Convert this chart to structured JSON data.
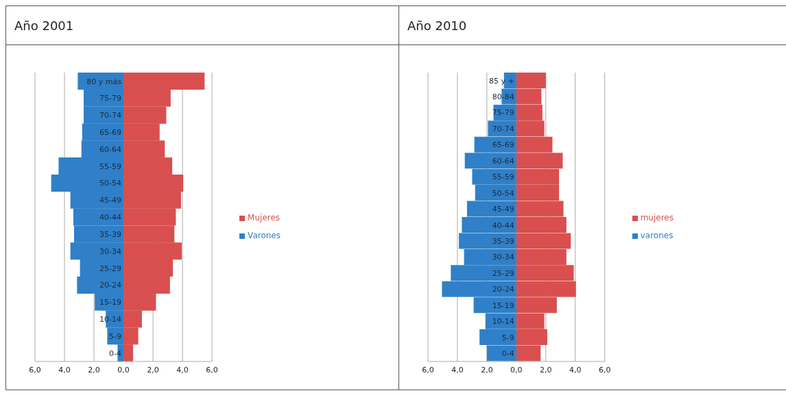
{
  "chart_data": [
    {
      "type": "bar",
      "title": "Año 2001",
      "orientation": "horizontal",
      "stacked": true,
      "categories": [
        "80 y más",
        "75-79",
        "70-74",
        "65-69",
        "60-64",
        "55-59",
        "50-54",
        "45-49",
        "40-44",
        "35-39",
        "30-34",
        "25-29",
        "20-24",
        "15-19",
        "10-14",
        "5-9",
        "0-4"
      ],
      "series": [
        {
          "name": "Mujeres",
          "color": "#d94f4f",
          "values": [
            5.5,
            3.2,
            2.9,
            2.45,
            2.8,
            3.3,
            4.05,
            3.9,
            3.55,
            3.45,
            3.95,
            3.35,
            3.15,
            2.2,
            1.25,
            1.0,
            0.65
          ]
        },
        {
          "name": "Varones",
          "color": "#2f80c8",
          "values": [
            -3.1,
            -2.7,
            -2.7,
            -2.8,
            -2.85,
            -4.4,
            -4.9,
            -3.6,
            -3.4,
            -3.35,
            -3.6,
            -2.95,
            -3.15,
            -1.95,
            -1.2,
            -1.1,
            -0.4
          ]
        }
      ],
      "xlim": [
        -6,
        6
      ],
      "xticks": [
        {
          "value": -6,
          "label": "6,0"
        },
        {
          "value": -4,
          "label": "4,0"
        },
        {
          "value": -2,
          "label": "2,0"
        },
        {
          "value": 0,
          "label": "0,0"
        },
        {
          "value": 2,
          "label": "2,0"
        },
        {
          "value": 4,
          "label": "4,0"
        },
        {
          "value": 6,
          "label": "6,0"
        }
      ],
      "grid": "x",
      "legend": "right"
    },
    {
      "type": "bar",
      "title": "Año 2010",
      "orientation": "horizontal",
      "stacked": true,
      "categories": [
        "85 y +",
        "80-84",
        "75-79",
        "70-74",
        "65-69",
        "60-64",
        "55-59",
        "50-54",
        "45-49",
        "40-44",
        "35-39",
        "30-34",
        "25-29",
        "20-24",
        "15-19",
        "10-14",
        "5-9",
        "0-4"
      ],
      "series": [
        {
          "name": "mujeres",
          "color": "#d94f4f",
          "values": [
            2.0,
            1.7,
            1.77,
            1.9,
            2.45,
            3.15,
            2.9,
            2.9,
            3.2,
            3.4,
            3.7,
            3.4,
            3.9,
            4.05,
            2.75,
            1.9,
            2.1,
            1.65
          ]
        },
        {
          "name": "varones",
          "color": "#2f80c8",
          "values": [
            -0.84,
            -1.0,
            -1.55,
            -1.93,
            -2.85,
            -3.5,
            -3.0,
            -2.8,
            -3.35,
            -3.7,
            -3.9,
            -3.55,
            -4.45,
            -5.05,
            -2.9,
            -2.1,
            -2.5,
            -2.0
          ]
        }
      ],
      "xlim": [
        -6,
        6
      ],
      "xticks": [
        {
          "value": -6,
          "label": "6,0"
        },
        {
          "value": -4,
          "label": "4,0"
        },
        {
          "value": -2,
          "label": "2,0"
        },
        {
          "value": 0,
          "label": "0,0"
        },
        {
          "value": 2,
          "label": "2,0"
        },
        {
          "value": 4,
          "label": "4,0"
        },
        {
          "value": 6,
          "label": "6,0"
        }
      ],
      "grid": "x",
      "legend": "right"
    }
  ]
}
